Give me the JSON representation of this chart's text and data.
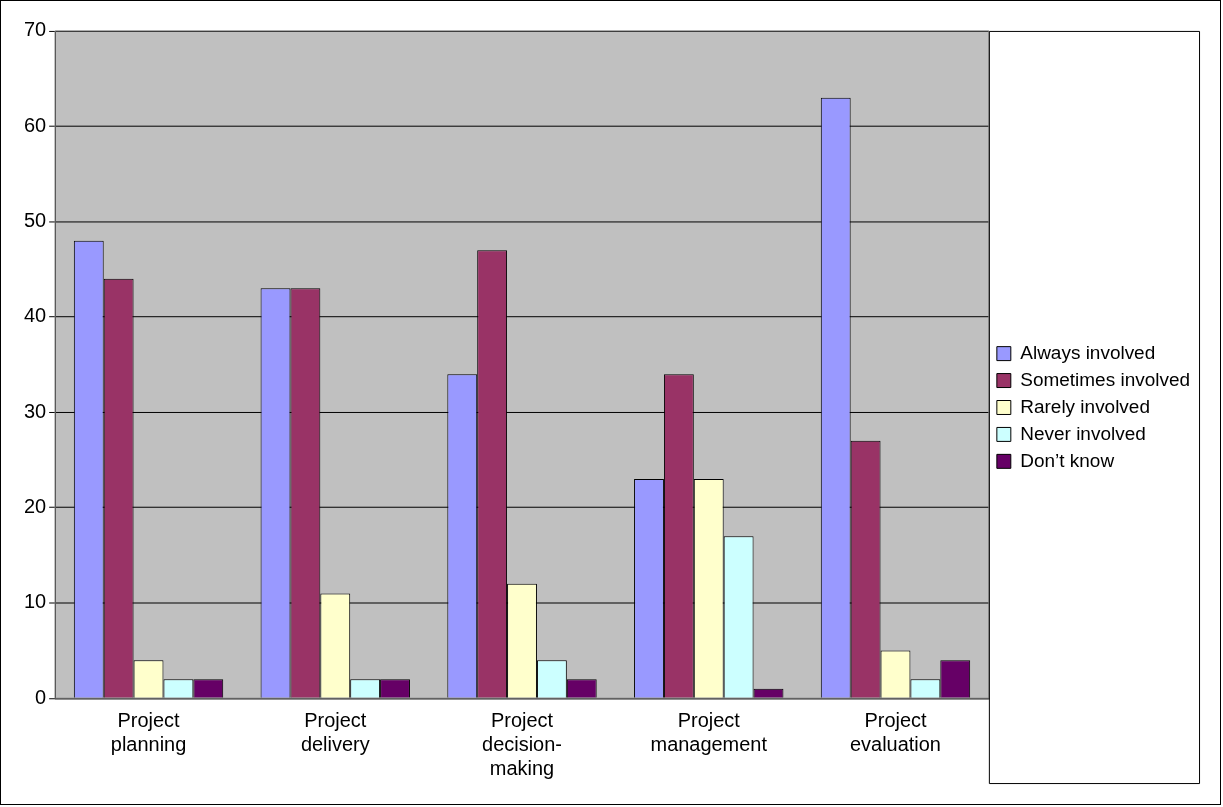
{
  "chart_data": {
    "type": "bar",
    "categories": [
      "Project planning",
      "Project delivery",
      "Project decision-making",
      "Project management",
      "Project evaluation"
    ],
    "series": [
      {
        "name": "Always involved",
        "color": "#9999ff",
        "values": [
          48,
          43,
          34,
          23,
          63
        ]
      },
      {
        "name": "Sometimes involved",
        "color": "#993366",
        "values": [
          44,
          43,
          47,
          34,
          27
        ]
      },
      {
        "name": "Rarely involved",
        "color": "#ffffcc",
        "values": [
          4,
          11,
          12,
          23,
          5
        ]
      },
      {
        "name": "Never involved",
        "color": "#ccffff",
        "values": [
          2,
          2,
          4,
          17,
          2
        ]
      },
      {
        "name": "Don’t know",
        "color": "#660066",
        "values": [
          2,
          2,
          2,
          1,
          4
        ]
      }
    ],
    "ylim": [
      0,
      70
    ],
    "yticks": [
      0,
      10,
      20,
      30,
      40,
      50,
      60,
      70
    ],
    "grid": "y",
    "legend": "right"
  }
}
